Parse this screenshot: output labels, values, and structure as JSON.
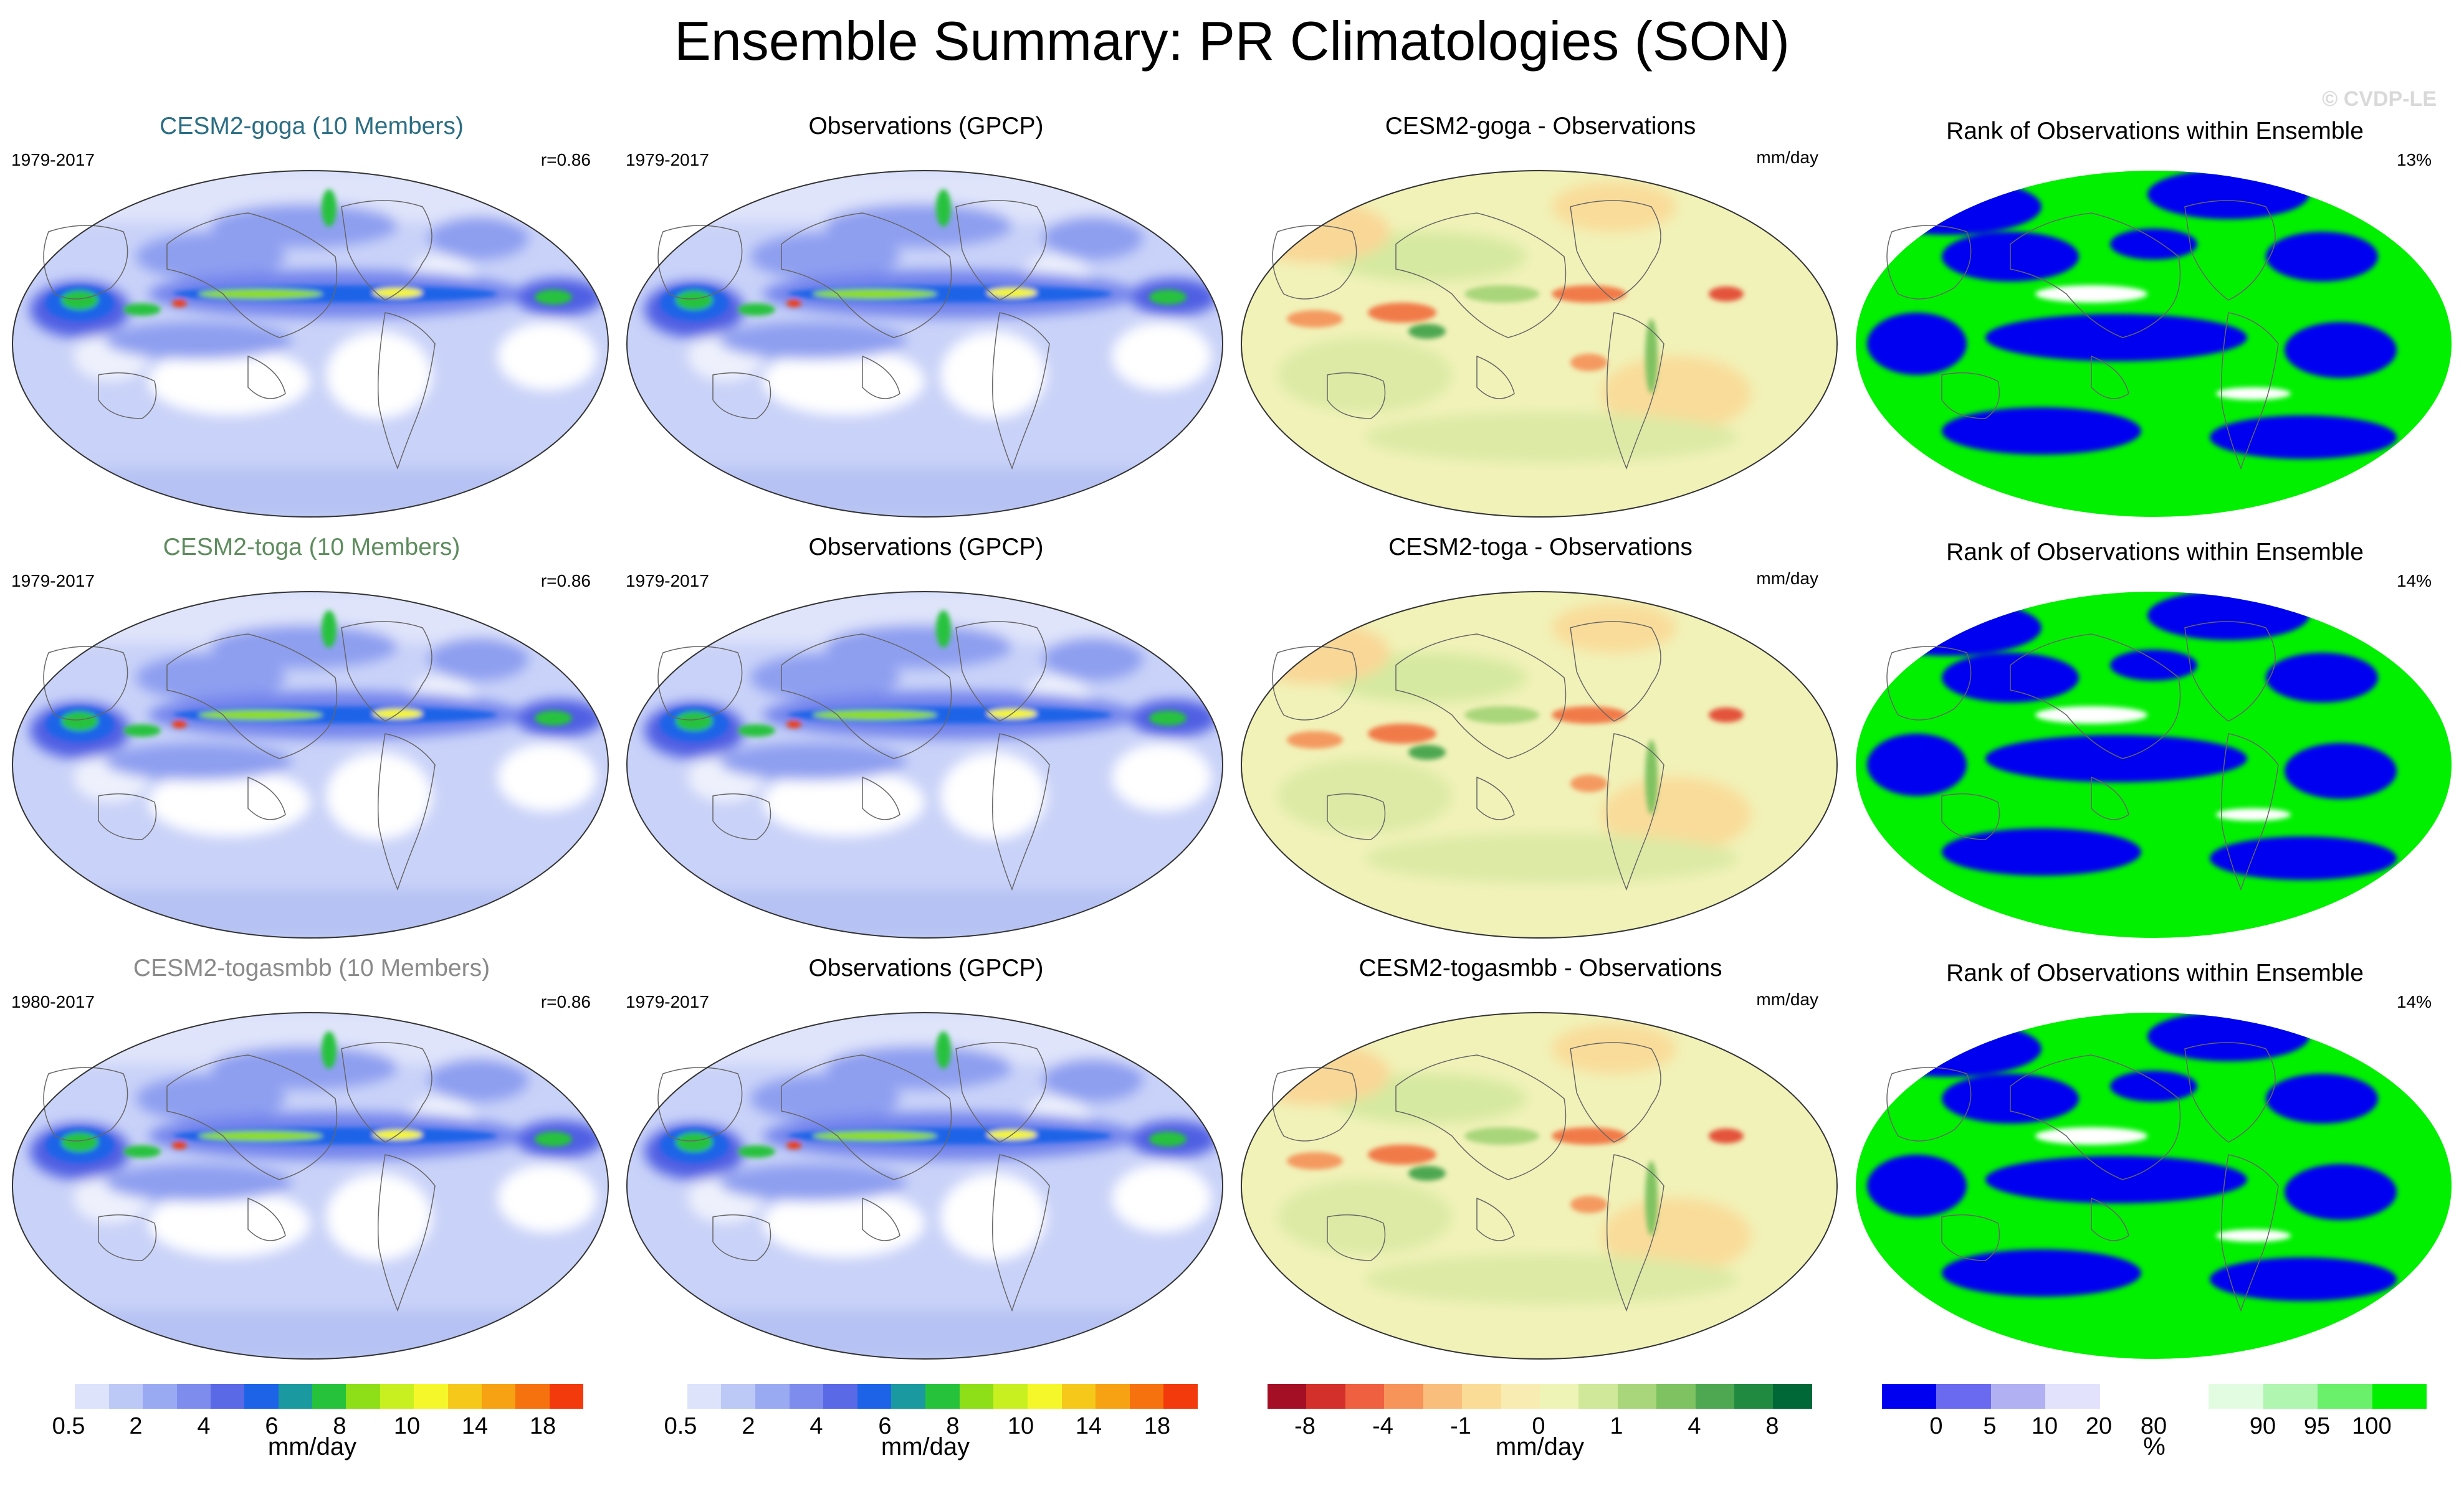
{
  "title": "Ensemble Summary: PR Climatologies (SON)",
  "watermark": "© CVDP-LE",
  "rows": [
    {
      "model": {
        "label": "CESM2-goga (10 Members)",
        "color": "#2b6e84",
        "years": "1979-2017",
        "corr": "r=0.86"
      },
      "obs": {
        "label": "Observations (GPCP)",
        "years": "1979-2017"
      },
      "diff": {
        "label": "CESM2-goga - Observations",
        "units": "mm/day"
      },
      "rank": {
        "label": "Rank of Observations within Ensemble",
        "pct": "13%"
      }
    },
    {
      "model": {
        "label": "CESM2-toga (10 Members)",
        "color": "#5e8c5e",
        "years": "1979-2017",
        "corr": "r=0.86"
      },
      "obs": {
        "label": "Observations (GPCP)",
        "years": "1979-2017"
      },
      "diff": {
        "label": "CESM2-toga - Observations",
        "units": "mm/day"
      },
      "rank": {
        "label": "Rank of Observations within Ensemble",
        "pct": "14%"
      }
    },
    {
      "model": {
        "label": "CESM2-togasmbb (10 Members)",
        "color": "#8a8a8a",
        "years": "1980-2017",
        "corr": "r=0.86"
      },
      "obs": {
        "label": "Observations (GPCP)",
        "years": "1979-2017"
      },
      "diff": {
        "label": "CESM2-togasmbb - Observations",
        "units": "mm/day"
      },
      "rank": {
        "label": "Rank of Observations within Ensemble",
        "pct": "14%"
      }
    }
  ],
  "colorbars": [
    {
      "units": "mm/day",
      "ticks": [
        "0.5",
        "2",
        "4",
        "6",
        "8",
        "10",
        "14",
        "18"
      ],
      "colors": [
        "#ffffff",
        "#dde3fb",
        "#bcc8f6",
        "#9aaaf2",
        "#7d8ced",
        "#5a6ae6",
        "#1c63e8",
        "#1a9aa0",
        "#27c23c",
        "#8ede18",
        "#c8f020",
        "#f6f72a",
        "#f5c81a",
        "#f7a212",
        "#f6720f",
        "#f23a0c"
      ]
    },
    {
      "units": "mm/day",
      "ticks": [
        "0.5",
        "2",
        "4",
        "6",
        "8",
        "10",
        "14",
        "18"
      ],
      "colors": [
        "#ffffff",
        "#dde3fb",
        "#bcc8f6",
        "#9aaaf2",
        "#7d8ced",
        "#5a6ae6",
        "#1c63e8",
        "#1a9aa0",
        "#27c23c",
        "#8ede18",
        "#c8f020",
        "#f6f72a",
        "#f5c81a",
        "#f7a212",
        "#f6720f",
        "#f23a0c"
      ]
    },
    {
      "units": "mm/day",
      "ticks": [
        "-8",
        "-4",
        "-1",
        "0",
        "1",
        "4",
        "8"
      ],
      "colors": [
        "#a50f26",
        "#d32f2b",
        "#ee6040",
        "#f69459",
        "#f9be7b",
        "#fbdc96",
        "#f9ecb2",
        "#eef4b5",
        "#cfe89a",
        "#a9d67a",
        "#7fc261",
        "#4ea751",
        "#1f8a40",
        "#006837"
      ]
    },
    {
      "units": "%",
      "ticks": [
        "0",
        "5",
        "10",
        "20",
        "80",
        "90",
        "95",
        "100"
      ],
      "colors": [
        "#0000f0",
        "#6a6af0",
        "#b0b0f2",
        "#e2e2fc",
        "#ffffff",
        "#ffffff",
        "#e2fce2",
        "#b0f5b0",
        "#6af06a",
        "#00f000"
      ]
    }
  ],
  "chart_data": [
    {
      "type": "heatmap",
      "description_role": "model precipitation climatology panels (column 1)",
      "variable": "PR",
      "season": "SON",
      "units": "mm/day",
      "contour_levels": [
        0.5,
        1,
        2,
        3,
        4,
        5,
        6,
        7,
        8,
        9,
        10,
        12,
        14,
        16,
        18
      ],
      "rows": [
        "CESM2-goga (10 Members)",
        "CESM2-toga (10 Members)",
        "CESM2-togasmbb (10 Members)"
      ],
      "pattern_correlation": [
        0.86,
        0.86,
        0.86
      ]
    },
    {
      "type": "heatmap",
      "description_role": "observed precipitation climatology (column 2)",
      "dataset": "GPCP",
      "units": "mm/day",
      "contour_levels": [
        0.5,
        1,
        2,
        3,
        4,
        5,
        6,
        7,
        8,
        9,
        10,
        12,
        14,
        16,
        18
      ]
    },
    {
      "type": "heatmap",
      "description_role": "ensemble mean minus observations (column 3)",
      "units": "mm/day",
      "contour_levels": [
        -8,
        -6,
        -4,
        -2,
        -1,
        -0.5,
        0,
        0.5,
        1,
        2,
        4,
        6,
        8
      ]
    },
    {
      "type": "heatmap",
      "description_role": "rank of observations within ensemble (column 4)",
      "units": "%",
      "levels": [
        0,
        5,
        10,
        20,
        80,
        90,
        95,
        100
      ],
      "area_outside_ensemble": [
        "13%",
        "14%",
        "14%"
      ]
    }
  ]
}
